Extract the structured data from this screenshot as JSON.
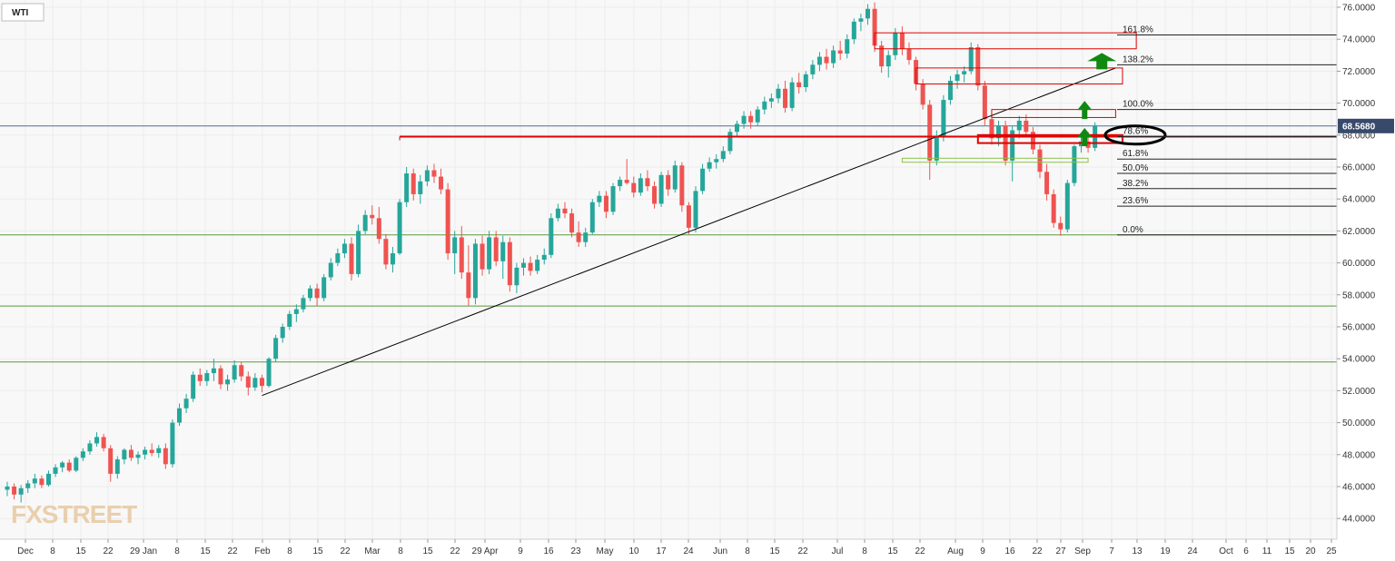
{
  "symbol": "WTI",
  "watermark": "FXSTREET",
  "current_price": "68.5680",
  "colors": {
    "up": "#26a69a",
    "down": "#ef5350",
    "resistance": "#e00000",
    "support_box": "#8bc34a",
    "trend": "#000000",
    "arrow": "#118811",
    "price_line": "#556b8d",
    "price_tag": "#38496b",
    "grid": "#ececec"
  },
  "chart_data": {
    "type": "candlestick",
    "x_tick_labels": [
      "Dec",
      "8",
      "15",
      "22",
      "29 Jan",
      "8",
      "15",
      "22",
      "Feb",
      "8",
      "15",
      "22",
      "Mar",
      "8",
      "15",
      "22",
      "29 Apr",
      "9",
      "16",
      "23",
      "May",
      "10",
      "17",
      "24",
      "Jun",
      "8",
      "15",
      "22",
      "Jul",
      "8",
      "15",
      "22",
      "Aug",
      "9",
      "16",
      "22",
      "27",
      "Sep",
      "7",
      "13",
      "19",
      "24",
      "Oct",
      "6",
      "11",
      "15",
      "20",
      "25"
    ],
    "y_ticks": [
      "76.0000",
      "74.0000",
      "72.0000",
      "70.0000",
      "68.0000",
      "66.0000",
      "64.0000",
      "62.0000",
      "60.0000",
      "58.0000",
      "56.0000",
      "54.0000",
      "52.0000",
      "50.0000",
      "48.0000",
      "46.0000",
      "44.0000"
    ],
    "ylim": [
      43.0,
      76.5
    ],
    "xlim": [
      0,
      194
    ],
    "fib_levels": [
      {
        "label": "161.8%",
        "price": 74.27
      },
      {
        "label": "138.2%",
        "price": 72.4
      },
      {
        "label": "100.0%",
        "price": 69.6
      },
      {
        "label": "78.6%",
        "price": 67.9
      },
      {
        "label": "61.8%",
        "price": 66.5
      },
      {
        "label": "50.0%",
        "price": 65.6
      },
      {
        "label": "38.2%",
        "price": 64.65
      },
      {
        "label": "23.6%",
        "price": 63.55
      },
      {
        "label": "0.0%",
        "price": 61.75
      }
    ],
    "horizontal_support_lines": [
      61.75,
      57.3,
      53.8
    ],
    "horizontal_resistance": {
      "price": 67.9,
      "x_start": 57
    },
    "trendline": {
      "x1": 37,
      "y1": 51.7,
      "x2": 161,
      "y2": 72.2
    },
    "resistance_boxes": [
      {
        "x1": 126,
        "x2": 164,
        "top": 74.4,
        "bottom": 73.4
      },
      {
        "x1": 132,
        "x2": 162,
        "top": 72.2,
        "bottom": 71.2
      },
      {
        "x1": 143,
        "x2": 161,
        "top": 69.6,
        "bottom": 69.1
      },
      {
        "x1": 141,
        "x2": 162,
        "top": 68.0,
        "bottom": 67.5
      }
    ],
    "support_box": {
      "x1": 130,
      "x2": 157,
      "top": 66.55,
      "bottom": 66.3
    },
    "arrows": [
      {
        "x": 156.5,
        "price": 68.1,
        "size": "small"
      },
      {
        "x": 156.5,
        "price": 69.8,
        "size": "small"
      },
      {
        "x": 159,
        "price": 72.8,
        "size": "large"
      }
    ],
    "highlight_ellipse": {
      "x": 165.5,
      "price": 68.0
    },
    "candles": [
      [
        0,
        45.8,
        46.3,
        45.4,
        46.0
      ],
      [
        1,
        46.0,
        46.2,
        45.2,
        45.5
      ],
      [
        2,
        45.5,
        46.1,
        45.0,
        45.9
      ],
      [
        3,
        45.9,
        46.4,
        45.6,
        46.2
      ],
      [
        4,
        46.2,
        46.8,
        45.9,
        46.5
      ],
      [
        5,
        46.5,
        46.7,
        45.9,
        46.1
      ],
      [
        6,
        46.1,
        47.0,
        46.0,
        46.8
      ],
      [
        7,
        46.8,
        47.4,
        46.6,
        47.2
      ],
      [
        8,
        47.2,
        47.6,
        46.9,
        47.5
      ],
      [
        9,
        47.5,
        47.7,
        46.9,
        47.0
      ],
      [
        10,
        47.0,
        47.9,
        46.9,
        47.8
      ],
      [
        11,
        47.8,
        48.4,
        47.6,
        48.2
      ],
      [
        12,
        48.2,
        48.9,
        48.0,
        48.7
      ],
      [
        13,
        48.7,
        49.4,
        48.5,
        49.1
      ],
      [
        14,
        49.1,
        49.3,
        48.2,
        48.4
      ],
      [
        15,
        48.4,
        48.6,
        46.3,
        46.8
      ],
      [
        16,
        46.8,
        47.9,
        46.5,
        47.7
      ],
      [
        17,
        47.7,
        48.4,
        47.4,
        48.3
      ],
      [
        18,
        48.3,
        48.6,
        47.6,
        47.8
      ],
      [
        19,
        47.8,
        48.2,
        47.4,
        48.0
      ],
      [
        20,
        48.0,
        48.5,
        47.7,
        48.3
      ],
      [
        21,
        48.3,
        48.7,
        47.9,
        48.1
      ],
      [
        22,
        48.1,
        48.6,
        47.8,
        48.4
      ],
      [
        23,
        48.4,
        48.7,
        47.1,
        47.4
      ],
      [
        24,
        47.4,
        50.2,
        47.2,
        50.0
      ],
      [
        25,
        50.0,
        51.2,
        49.8,
        50.9
      ],
      [
        26,
        50.9,
        51.8,
        50.6,
        51.5
      ],
      [
        27,
        51.5,
        53.2,
        51.3,
        53.0
      ],
      [
        28,
        53.0,
        53.4,
        52.3,
        52.6
      ],
      [
        29,
        52.6,
        53.3,
        52.3,
        53.1
      ],
      [
        30,
        53.1,
        54.0,
        52.6,
        53.4
      ],
      [
        31,
        53.4,
        53.6,
        52.1,
        52.4
      ],
      [
        32,
        52.4,
        53.0,
        52.0,
        52.7
      ],
      [
        33,
        52.7,
        53.9,
        52.5,
        53.6
      ],
      [
        34,
        53.6,
        53.8,
        52.6,
        52.9
      ],
      [
        35,
        52.9,
        53.2,
        51.7,
        52.2
      ],
      [
        36,
        52.2,
        53.1,
        52.0,
        52.8
      ],
      [
        37,
        52.8,
        53.0,
        51.9,
        52.3
      ],
      [
        38,
        52.3,
        54.1,
        52.2,
        54.0
      ],
      [
        39,
        54.0,
        55.5,
        53.8,
        55.3
      ],
      [
        40,
        55.3,
        56.2,
        55.0,
        56.0
      ],
      [
        41,
        56.0,
        57.0,
        55.8,
        56.8
      ],
      [
        42,
        56.8,
        57.4,
        56.3,
        57.1
      ],
      [
        43,
        57.1,
        58.0,
        56.9,
        57.8
      ],
      [
        44,
        57.8,
        58.6,
        57.6,
        58.4
      ],
      [
        45,
        58.4,
        58.7,
        57.3,
        57.8
      ],
      [
        46,
        57.8,
        59.3,
        57.6,
        59.1
      ],
      [
        47,
        59.1,
        60.3,
        58.9,
        60.0
      ],
      [
        48,
        60.0,
        60.9,
        59.8,
        60.6
      ],
      [
        49,
        60.6,
        61.5,
        60.3,
        61.2
      ],
      [
        50,
        61.2,
        61.6,
        58.9,
        59.3
      ],
      [
        51,
        59.3,
        62.4,
        59.1,
        62.0
      ],
      [
        52,
        62.0,
        63.3,
        61.8,
        63.0
      ],
      [
        53,
        63.0,
        63.6,
        62.4,
        62.8
      ],
      [
        54,
        62.8,
        63.5,
        61.2,
        61.5
      ],
      [
        55,
        61.5,
        61.8,
        59.6,
        59.9
      ],
      [
        56,
        59.9,
        61.0,
        59.4,
        60.6
      ],
      [
        57,
        60.6,
        64.0,
        60.5,
        63.8
      ],
      [
        58,
        63.8,
        66.0,
        63.5,
        65.6
      ],
      [
        59,
        65.6,
        65.9,
        63.9,
        64.3
      ],
      [
        60,
        64.3,
        65.5,
        63.7,
        65.1
      ],
      [
        61,
        65.1,
        66.1,
        64.8,
        65.8
      ],
      [
        62,
        65.8,
        66.2,
        65.0,
        65.4
      ],
      [
        63,
        65.4,
        65.9,
        64.3,
        64.6
      ],
      [
        64,
        64.6,
        65.0,
        60.2,
        60.6
      ],
      [
        65,
        60.6,
        62.0,
        59.3,
        61.6
      ],
      [
        66,
        61.6,
        62.3,
        59.0,
        59.4
      ],
      [
        67,
        59.4,
        61.1,
        57.3,
        57.8
      ],
      [
        68,
        57.8,
        61.5,
        57.4,
        61.2
      ],
      [
        69,
        61.2,
        61.7,
        59.2,
        59.6
      ],
      [
        70,
        59.6,
        62.0,
        59.3,
        61.6
      ],
      [
        71,
        61.6,
        62.0,
        59.8,
        60.1
      ],
      [
        72,
        60.1,
        61.7,
        59.0,
        61.3
      ],
      [
        73,
        61.3,
        61.6,
        58.2,
        58.6
      ],
      [
        74,
        58.6,
        60.0,
        58.1,
        59.7
      ],
      [
        75,
        59.7,
        60.3,
        59.2,
        60.0
      ],
      [
        76,
        60.0,
        60.4,
        59.2,
        59.5
      ],
      [
        77,
        59.5,
        60.5,
        59.3,
        60.2
      ],
      [
        78,
        60.2,
        60.9,
        59.9,
        60.5
      ],
      [
        79,
        60.5,
        63.1,
        60.3,
        62.8
      ],
      [
        80,
        62.8,
        63.7,
        62.6,
        63.4
      ],
      [
        81,
        63.4,
        63.8,
        62.8,
        63.1
      ],
      [
        82,
        63.1,
        63.4,
        61.6,
        61.9
      ],
      [
        83,
        61.9,
        62.6,
        61.0,
        61.3
      ],
      [
        84,
        61.3,
        62.2,
        61.0,
        61.9
      ],
      [
        85,
        61.9,
        64.0,
        61.8,
        63.8
      ],
      [
        86,
        63.8,
        64.5,
        63.5,
        64.2
      ],
      [
        87,
        64.2,
        64.5,
        62.8,
        63.2
      ],
      [
        88,
        63.2,
        65.0,
        63.0,
        64.8
      ],
      [
        89,
        64.8,
        65.4,
        64.5,
        65.2
      ],
      [
        90,
        65.2,
        66.5,
        64.9,
        65.0
      ],
      [
        91,
        65.0,
        65.4,
        64.1,
        64.4
      ],
      [
        92,
        64.4,
        65.6,
        64.2,
        65.3
      ],
      [
        93,
        65.3,
        65.8,
        64.5,
        64.8
      ],
      [
        94,
        64.8,
        65.1,
        63.4,
        63.7
      ],
      [
        95,
        63.7,
        65.7,
        63.5,
        65.5
      ],
      [
        96,
        65.5,
        65.8,
        64.2,
        64.6
      ],
      [
        97,
        64.6,
        66.4,
        64.4,
        66.1
      ],
      [
        98,
        66.1,
        66.3,
        63.2,
        63.6
      ],
      [
        99,
        63.6,
        63.8,
        61.8,
        62.2
      ],
      [
        100,
        62.2,
        64.8,
        61.9,
        64.5
      ],
      [
        101,
        64.5,
        66.2,
        64.3,
        65.9
      ],
      [
        102,
        65.9,
        66.6,
        65.7,
        66.3
      ],
      [
        103,
        66.3,
        66.8,
        65.9,
        66.5
      ],
      [
        104,
        66.5,
        67.3,
        66.3,
        67.0
      ],
      [
        105,
        67.0,
        68.4,
        66.8,
        68.2
      ],
      [
        106,
        68.2,
        68.9,
        67.9,
        68.7
      ],
      [
        107,
        68.7,
        69.5,
        68.4,
        69.2
      ],
      [
        108,
        69.2,
        69.5,
        68.4,
        68.8
      ],
      [
        109,
        68.8,
        69.8,
        68.6,
        69.6
      ],
      [
        110,
        69.6,
        70.4,
        69.3,
        70.1
      ],
      [
        111,
        70.1,
        70.6,
        69.7,
        70.3
      ],
      [
        112,
        70.3,
        71.2,
        70.0,
        70.9
      ],
      [
        113,
        70.9,
        71.4,
        69.4,
        69.7
      ],
      [
        114,
        69.7,
        71.6,
        69.5,
        71.3
      ],
      [
        115,
        71.3,
        71.9,
        70.6,
        71.0
      ],
      [
        116,
        71.0,
        72.0,
        70.7,
        71.8
      ],
      [
        117,
        71.8,
        72.7,
        71.5,
        72.4
      ],
      [
        118,
        72.4,
        73.2,
        72.0,
        72.9
      ],
      [
        119,
        72.9,
        73.4,
        72.1,
        72.5
      ],
      [
        120,
        72.5,
        73.6,
        72.2,
        73.3
      ],
      [
        121,
        73.3,
        73.9,
        72.7,
        73.1
      ],
      [
        122,
        73.1,
        74.3,
        72.8,
        74.0
      ],
      [
        123,
        74.0,
        75.3,
        73.7,
        75.1
      ],
      [
        124,
        75.1,
        75.6,
        74.5,
        75.3
      ],
      [
        125,
        75.3,
        76.2,
        74.9,
        75.9
      ],
      [
        126,
        75.9,
        76.3,
        73.2,
        73.6
      ],
      [
        127,
        73.6,
        73.9,
        71.9,
        72.3
      ],
      [
        128,
        72.3,
        73.3,
        71.6,
        73.0
      ],
      [
        129,
        73.0,
        74.7,
        72.7,
        74.4
      ],
      [
        130,
        74.4,
        74.8,
        73.0,
        73.4
      ],
      [
        131,
        73.4,
        73.8,
        72.4,
        72.7
      ],
      [
        132,
        72.7,
        72.9,
        70.8,
        71.2
      ],
      [
        133,
        71.2,
        71.5,
        69.6,
        69.9
      ],
      [
        134,
        69.9,
        70.2,
        65.2,
        66.4
      ],
      [
        135,
        66.4,
        68.3,
        66.1,
        67.9
      ],
      [
        136,
        67.9,
        70.5,
        67.6,
        70.2
      ],
      [
        137,
        70.2,
        71.7,
        69.9,
        71.4
      ],
      [
        138,
        71.4,
        72.1,
        70.9,
        71.8
      ],
      [
        139,
        71.8,
        72.3,
        71.3,
        72.0
      ],
      [
        140,
        72.0,
        73.8,
        71.8,
        73.5
      ],
      [
        141,
        73.5,
        73.7,
        70.8,
        71.1
      ],
      [
        142,
        71.1,
        71.4,
        68.6,
        69.0
      ],
      [
        143,
        69.0,
        69.3,
        67.4,
        67.8
      ],
      [
        144,
        67.8,
        68.9,
        67.3,
        68.6
      ],
      [
        145,
        68.6,
        68.9,
        66.1,
        66.4
      ],
      [
        146,
        66.4,
        68.6,
        65.1,
        68.3
      ],
      [
        147,
        68.3,
        69.2,
        67.8,
        68.9
      ],
      [
        148,
        68.9,
        69.3,
        67.9,
        68.2
      ],
      [
        149,
        68.2,
        68.5,
        66.8,
        67.1
      ],
      [
        150,
        67.1,
        67.4,
        65.3,
        65.7
      ],
      [
        151,
        65.7,
        66.2,
        63.9,
        64.3
      ],
      [
        152,
        64.3,
        64.6,
        62.2,
        62.5
      ],
      [
        153,
        62.5,
        62.9,
        61.7,
        62.1
      ],
      [
        154,
        62.1,
        65.2,
        61.9,
        65.0
      ],
      [
        155,
        65.0,
        67.4,
        64.8,
        67.3
      ],
      [
        156,
        67.3,
        68.0,
        66.9,
        67.6
      ],
      [
        157,
        67.6,
        68.2,
        66.9,
        67.2
      ],
      [
        158,
        67.2,
        68.8,
        67.0,
        68.6
      ]
    ]
  }
}
